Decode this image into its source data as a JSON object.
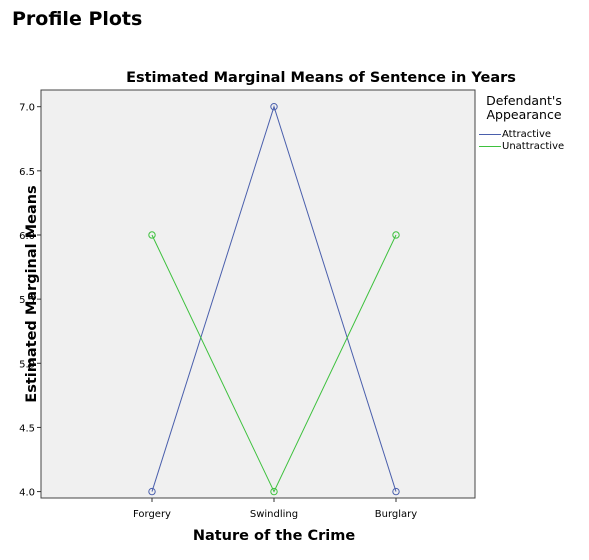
{
  "section_title": "Profile Plots",
  "legend": {
    "title_line1": "Defendant's",
    "title_line2": "Appearance"
  },
  "chart_data": {
    "type": "line",
    "title": "Estimated Marginal Means of Sentence in Years",
    "xlabel": "Nature of the Crime",
    "ylabel": "Estimated Marginal Means",
    "categories": [
      "Forgery",
      "Swindling",
      "Burglary"
    ],
    "yticks": [
      "4.0",
      "4.5",
      "5.0",
      "5.5",
      "6.0",
      "6.5",
      "7.0"
    ],
    "ylim": [
      3.95,
      7.13
    ],
    "legend_placement": "right",
    "grid": false,
    "plot_background": "#f0f0f0",
    "series": [
      {
        "name": "Attractive",
        "color": "#4a5fac",
        "values": [
          4.0,
          7.0,
          4.0
        ]
      },
      {
        "name": "Unattractive",
        "color": "#3ec13e",
        "values": [
          6.0,
          4.0,
          6.0
        ]
      }
    ]
  }
}
